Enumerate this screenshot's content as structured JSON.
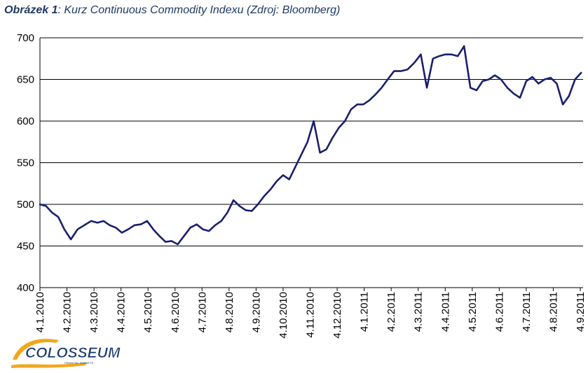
{
  "caption": {
    "label": "Obrázek 1",
    "text": ": Kurz Continuous Commodity Indexu (Zdroj: Bloomberg)"
  },
  "logo": {
    "name": "COLOSSEUM",
    "tagline": "FINANCIAL MARKETS"
  },
  "colors": {
    "line": "#1a1f6e",
    "caption": "#1f3864",
    "grid": "#000000"
  },
  "chart_data": {
    "type": "line",
    "title": "",
    "xlabel": "",
    "ylabel": "",
    "ylim": [
      400,
      700
    ],
    "yticks": [
      "400",
      "450",
      "500",
      "550",
      "600",
      "650",
      "700"
    ],
    "xticks": [
      "4.1.2010",
      "4.2.2010",
      "4.3.2010",
      "4.4.2010",
      "4.5.2010",
      "4.6.2010",
      "4.7.2010",
      "4.8.2010",
      "4.9.2010",
      "4.10.2010",
      "4.11.2010",
      "4.12.2010",
      "4.1.2011",
      "4.2.2011",
      "4.3.2011",
      "4.4.2011",
      "4.5.2011",
      "4.6.2011",
      "4.7.2011",
      "4.8.2011",
      "4.9.2011"
    ],
    "grid": "horizontal",
    "series": [
      {
        "color": "#1a1f6e",
        "x": [
          "4.1.2010",
          "11.1.2010",
          "18.1.2010",
          "25.1.2010",
          "1.2.2010",
          "8.2.2010",
          "15.2.2010",
          "22.2.2010",
          "1.3.2010",
          "8.3.2010",
          "15.3.2010",
          "22.3.2010",
          "29.3.2010",
          "5.4.2010",
          "12.4.2010",
          "19.4.2010",
          "26.4.2010",
          "3.5.2010",
          "10.5.2010",
          "17.5.2010",
          "24.5.2010",
          "31.5.2010",
          "7.6.2010",
          "14.6.2010",
          "21.6.2010",
          "28.6.2010",
          "5.7.2010",
          "12.7.2010",
          "19.7.2010",
          "26.7.2010",
          "2.8.2010",
          "9.8.2010",
          "16.8.2010",
          "23.8.2010",
          "30.8.2010",
          "6.9.2010",
          "13.9.2010",
          "20.9.2010",
          "27.9.2010",
          "4.10.2010",
          "11.10.2010",
          "18.10.2010",
          "25.10.2010",
          "1.11.2010",
          "8.11.2010",
          "15.11.2010",
          "22.11.2010",
          "29.11.2010",
          "6.12.2010",
          "13.12.2010",
          "20.12.2010",
          "27.12.2010",
          "3.1.2011",
          "10.1.2011",
          "17.1.2011",
          "24.1.2011",
          "31.1.2011",
          "7.2.2011",
          "14.2.2011",
          "21.2.2011",
          "28.2.2011",
          "7.3.2011",
          "14.3.2011",
          "21.3.2011",
          "28.3.2011",
          "4.4.2011",
          "11.4.2011",
          "18.4.2011",
          "25.4.2011",
          "2.5.2011",
          "9.5.2011",
          "16.5.2011",
          "23.5.2011",
          "30.5.2011",
          "6.6.2011",
          "13.6.2011",
          "20.6.2011",
          "27.6.2011",
          "4.7.2011",
          "11.7.2011",
          "18.7.2011",
          "25.7.2011",
          "1.8.2011",
          "8.8.2011",
          "15.8.2011",
          "22.8.2011",
          "29.8.2011",
          "5.9.2011"
        ],
        "values": [
          500,
          498,
          490,
          485,
          470,
          458,
          470,
          475,
          480,
          478,
          480,
          475,
          472,
          466,
          470,
          475,
          476,
          480,
          470,
          462,
          455,
          456,
          452,
          462,
          472,
          476,
          470,
          468,
          475,
          480,
          490,
          505,
          498,
          493,
          492,
          500,
          510,
          518,
          528,
          535,
          530,
          545,
          560,
          575,
          600,
          562,
          566,
          580,
          592,
          600,
          614,
          620,
          620,
          625,
          632,
          640,
          650,
          660,
          660,
          662,
          670,
          680,
          640,
          675,
          678,
          680,
          680,
          678,
          690,
          640,
          637,
          648,
          650,
          655,
          650,
          640,
          633,
          628,
          648,
          653,
          645,
          650,
          652,
          645,
          620,
          630,
          650,
          658
        ]
      }
    ]
  }
}
